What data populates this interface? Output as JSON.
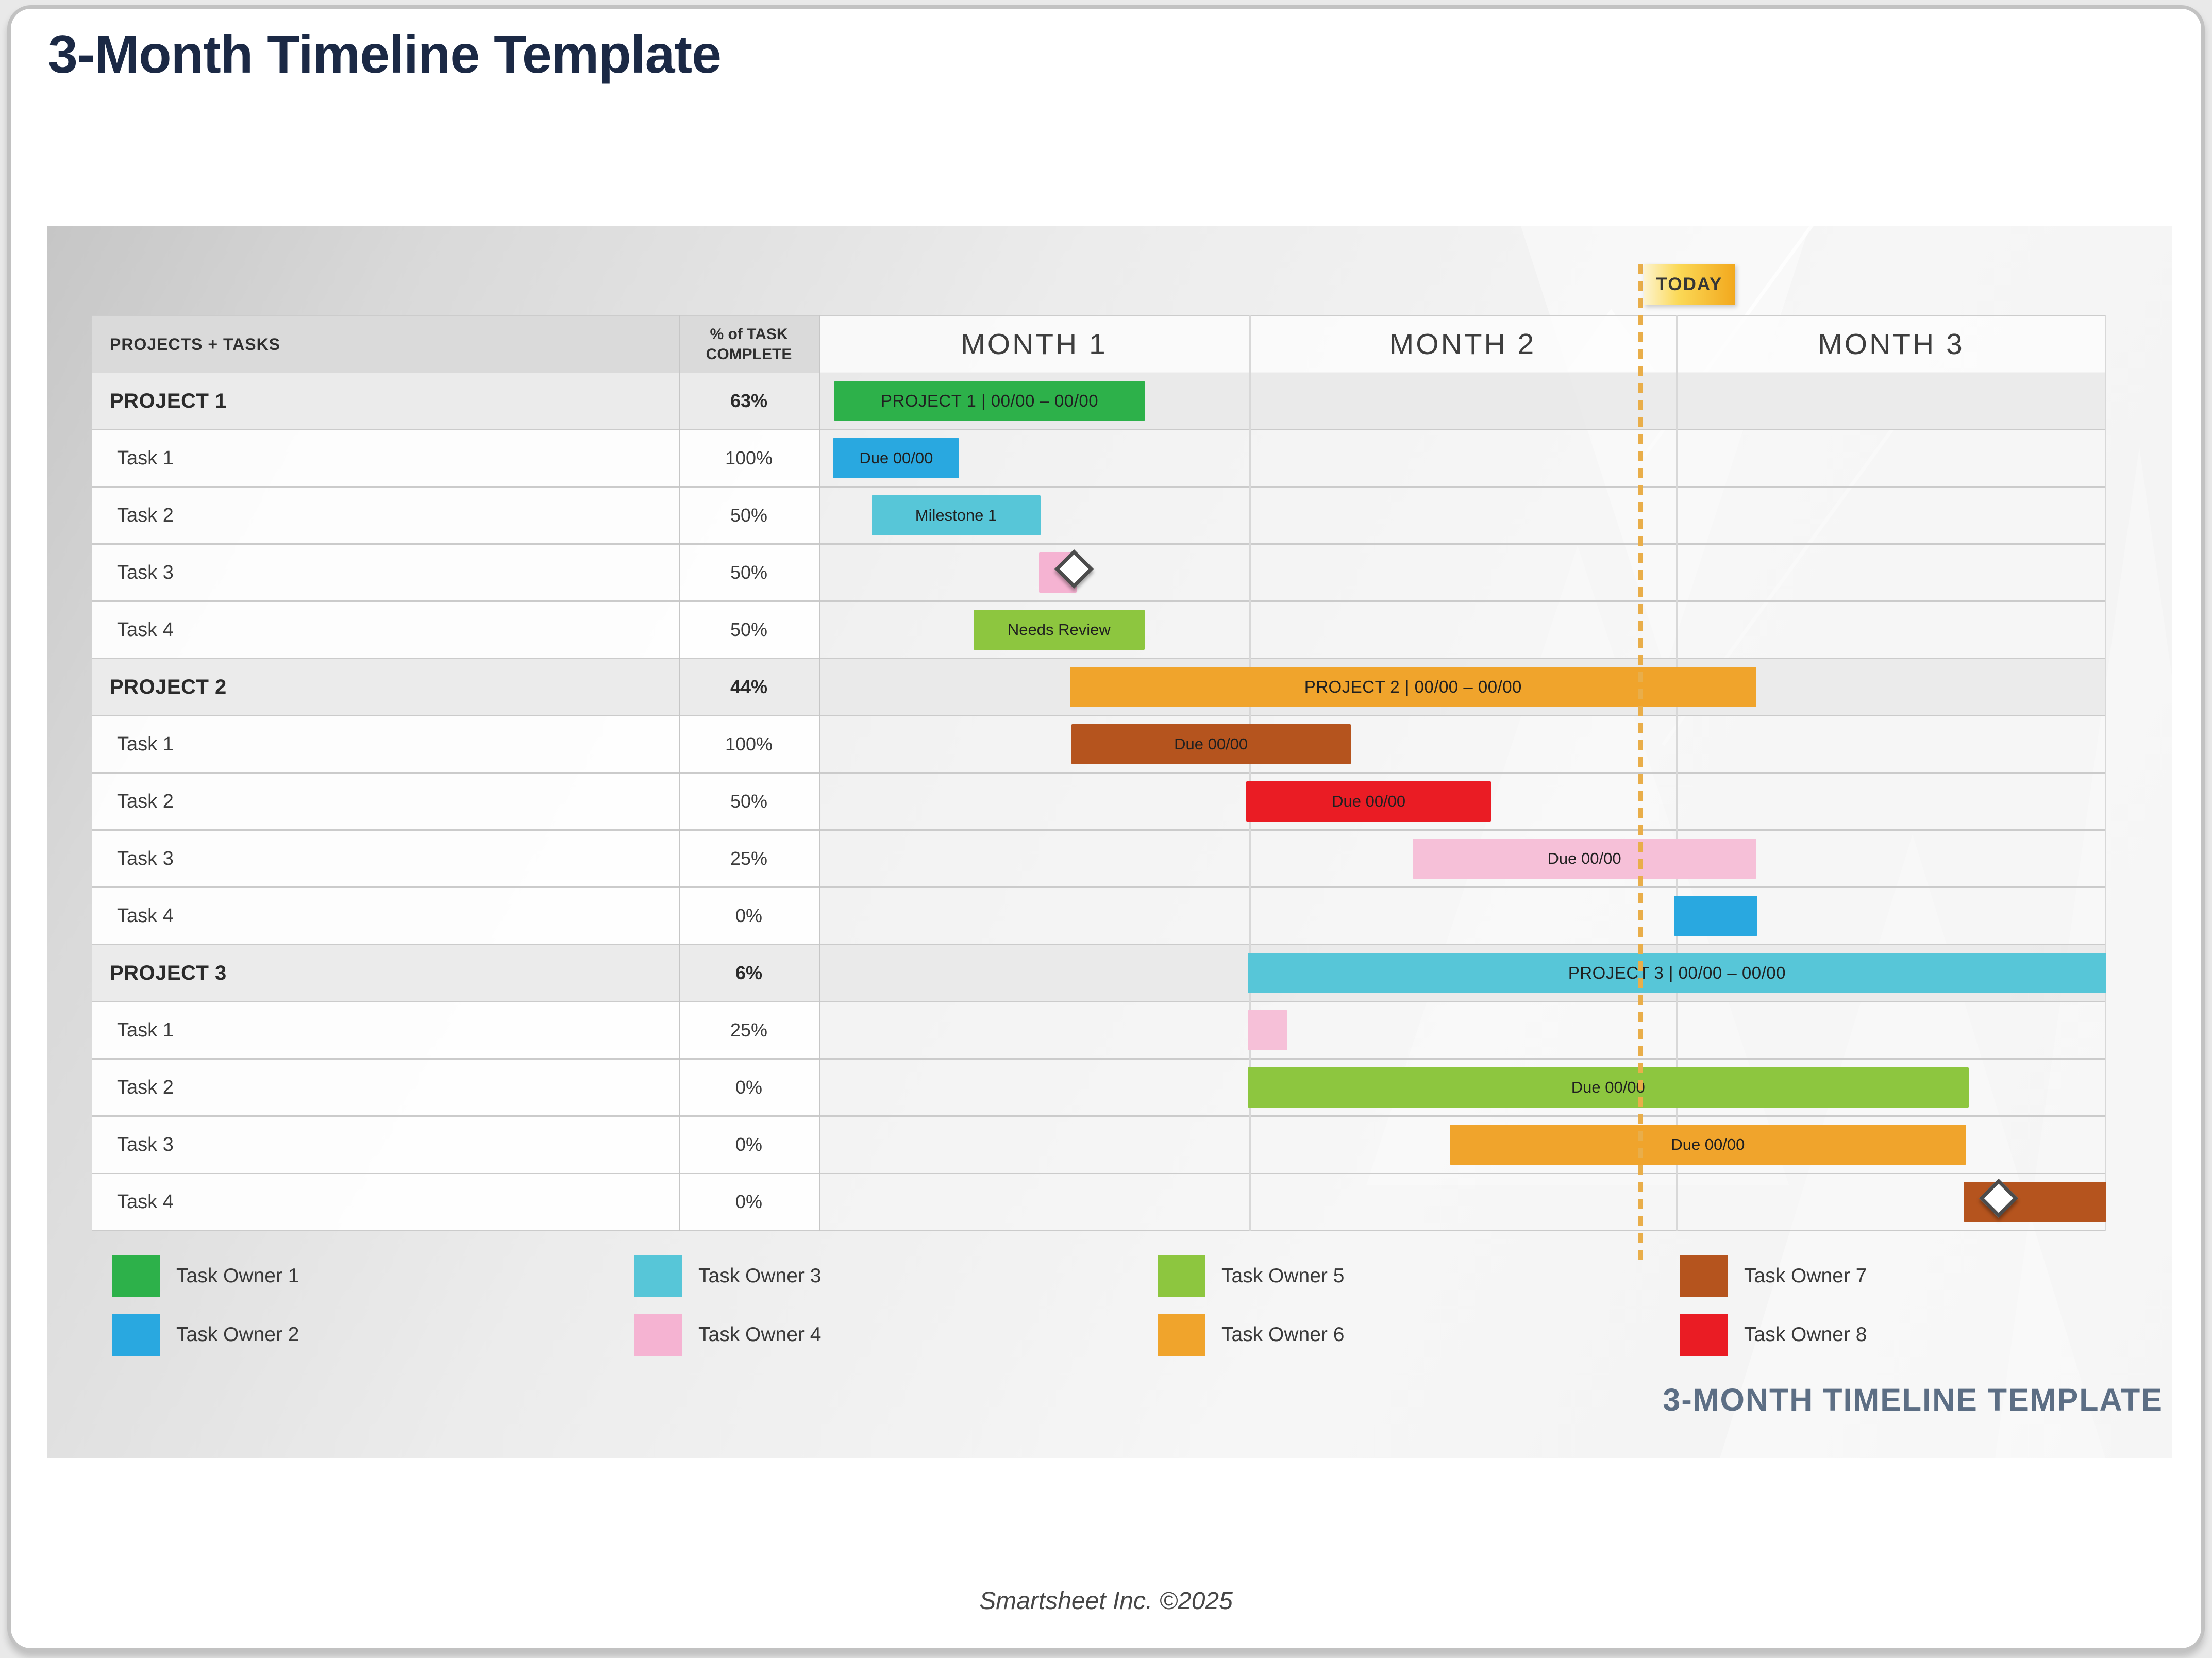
{
  "page": {
    "title": "3-Month Timeline Template",
    "watermark": "3-MONTH TIMELINE TEMPLATE",
    "footer": "Smartsheet Inc. ©2025"
  },
  "table": {
    "header_tasks": "PROJECTS + TASKS",
    "header_pct_top": "% of TASK",
    "header_pct_bottom": "COMPLETE",
    "months": [
      "MONTH 1",
      "MONTH 2",
      "MONTH 3"
    ],
    "today_label": "TODAY",
    "today_pct": 63.8,
    "rows": [
      {
        "name": "PROJECT 1",
        "pct": "63%",
        "project": true,
        "bar": {
          "start": 1.2,
          "end": 25.3,
          "color": "#2db14a",
          "label": "PROJECT 1  |  00/00 – 00/00"
        }
      },
      {
        "name": "Task 1",
        "pct": "100%",
        "project": false,
        "bar": {
          "start": 1.1,
          "end": 10.9,
          "color": "#29a8e0",
          "label": "Due 00/00"
        }
      },
      {
        "name": "Task 2",
        "pct": "50%",
        "project": false,
        "bar": {
          "start": 4.1,
          "end": 17.2,
          "color": "#57c6d8",
          "label": "Milestone 1"
        }
      },
      {
        "name": "Task 3",
        "pct": "50%",
        "project": false,
        "bar": {
          "start": 17.1,
          "end": 20.0,
          "color": "#f5b3d2",
          "label": ""
        },
        "milestone_pct": 20.1
      },
      {
        "name": "Task 4",
        "pct": "50%",
        "project": false,
        "bar": {
          "start": 12.0,
          "end": 25.3,
          "color": "#8dc63f",
          "label": "Needs Review"
        }
      },
      {
        "name": "PROJECT 2",
        "pct": "44%",
        "project": true,
        "bar": {
          "start": 19.5,
          "end": 72.8,
          "color": "#f0a42c",
          "label": "PROJECT 2  |  00/00 – 00/00"
        }
      },
      {
        "name": "Task 1",
        "pct": "100%",
        "project": false,
        "bar": {
          "start": 19.6,
          "end": 41.3,
          "color": "#b5541e",
          "label": "Due 00/00"
        }
      },
      {
        "name": "Task 2",
        "pct": "50%",
        "project": false,
        "bar": {
          "start": 33.2,
          "end": 52.2,
          "color": "#ea1c24",
          "label": "Due 00/00"
        }
      },
      {
        "name": "Task 3",
        "pct": "25%",
        "project": false,
        "bar": {
          "start": 46.1,
          "end": 72.8,
          "color": "#f6c0d8",
          "label": "Due 00/00"
        }
      },
      {
        "name": "Task 4",
        "pct": "0%",
        "project": false,
        "bar": {
          "start": 66.4,
          "end": 72.9,
          "color": "#29a8e0",
          "label": ""
        }
      },
      {
        "name": "PROJECT 3",
        "pct": "6%",
        "project": true,
        "bar": {
          "start": 33.3,
          "end": 100,
          "color": "#57c6d8",
          "label": "PROJECT 3  |  00/00 – 00/00"
        }
      },
      {
        "name": "Task 1",
        "pct": "25%",
        "project": false,
        "bar": {
          "start": 33.3,
          "end": 36.4,
          "color": "#f6c0d8",
          "label": ""
        }
      },
      {
        "name": "Task 2",
        "pct": "0%",
        "project": false,
        "bar": {
          "start": 33.3,
          "end": 89.3,
          "color": "#8dc63f",
          "label": "Due 00/00"
        }
      },
      {
        "name": "Task 3",
        "pct": "0%",
        "project": false,
        "bar": {
          "start": 49.0,
          "end": 89.1,
          "color": "#f0a42c",
          "label": "Due 00/00"
        }
      },
      {
        "name": "Task 4",
        "pct": "0%",
        "project": false,
        "bar": {
          "start": 88.9,
          "end": 100,
          "color": "#b5541e",
          "label": ""
        },
        "milestone_pct": 91.9
      }
    ]
  },
  "legend": {
    "items": [
      {
        "label": "Task Owner 1",
        "color": "#2db14a"
      },
      {
        "label": "Task Owner 2",
        "color": "#29a8e0"
      },
      {
        "label": "Task Owner 3",
        "color": "#57c6d8"
      },
      {
        "label": "Task Owner 4",
        "color": "#f5b3d2"
      },
      {
        "label": "Task Owner 5",
        "color": "#8dc63f"
      },
      {
        "label": "Task Owner 6",
        "color": "#f0a42c"
      },
      {
        "label": "Task Owner 7",
        "color": "#b5541e"
      },
      {
        "label": "Task Owner 8",
        "color": "#ea1c24"
      }
    ]
  },
  "colors": {
    "title": "#1b2945",
    "watermark": "#5c6e84",
    "today_badge_gradient": [
      "#fdf4d0",
      "#f2a81d"
    ],
    "today_dash": "#e9ae4a",
    "header_bg": "#dadada",
    "project_row_bg": "#ebebeb"
  },
  "chart_data": {
    "type": "bar",
    "subtype": "gantt",
    "title": "3-Month Timeline Template",
    "xlabel": "",
    "ylabel": "",
    "x_axis_categories": [
      "MONTH 1",
      "MONTH 2",
      "MONTH 3"
    ],
    "x_range_pct": [
      0,
      100
    ],
    "today_marker_pct": 63.8,
    "legend_position": "bottom",
    "grid": true,
    "rows": [
      {
        "task": "PROJECT 1",
        "pct_complete": "63%",
        "start_pct": 1.2,
        "end_pct": 25.3,
        "color": "#2db14a",
        "bar_label": "PROJECT 1  |  00/00 – 00/00"
      },
      {
        "task": "Task 1",
        "pct_complete": "100%",
        "start_pct": 1.1,
        "end_pct": 10.9,
        "color": "#29a8e0",
        "bar_label": "Due 00/00"
      },
      {
        "task": "Task 2",
        "pct_complete": "50%",
        "start_pct": 4.1,
        "end_pct": 17.2,
        "color": "#57c6d8",
        "bar_label": "Milestone 1"
      },
      {
        "task": "Task 3",
        "pct_complete": "50%",
        "start_pct": 17.1,
        "end_pct": 20.0,
        "color": "#f5b3d2",
        "bar_label": "",
        "milestone_pct": 20.1
      },
      {
        "task": "Task 4",
        "pct_complete": "50%",
        "start_pct": 12.0,
        "end_pct": 25.3,
        "color": "#8dc63f",
        "bar_label": "Needs Review"
      },
      {
        "task": "PROJECT 2",
        "pct_complete": "44%",
        "start_pct": 19.5,
        "end_pct": 72.8,
        "color": "#f0a42c",
        "bar_label": "PROJECT 2  |  00/00 – 00/00"
      },
      {
        "task": "Task 1",
        "pct_complete": "100%",
        "start_pct": 19.6,
        "end_pct": 41.3,
        "color": "#b5541e",
        "bar_label": "Due 00/00"
      },
      {
        "task": "Task 2",
        "pct_complete": "50%",
        "start_pct": 33.2,
        "end_pct": 52.2,
        "color": "#ea1c24",
        "bar_label": "Due 00/00"
      },
      {
        "task": "Task 3",
        "pct_complete": "25%",
        "start_pct": 46.1,
        "end_pct": 72.8,
        "color": "#f6c0d8",
        "bar_label": "Due 00/00"
      },
      {
        "task": "Task 4",
        "pct_complete": "0%",
        "start_pct": 66.4,
        "end_pct": 72.9,
        "color": "#29a8e0",
        "bar_label": ""
      },
      {
        "task": "PROJECT 3",
        "pct_complete": "6%",
        "start_pct": 33.3,
        "end_pct": 100,
        "color": "#57c6d8",
        "bar_label": "PROJECT 3  |  00/00 – 00/00"
      },
      {
        "task": "Task 1",
        "pct_complete": "25%",
        "start_pct": 33.3,
        "end_pct": 36.4,
        "color": "#f6c0d8",
        "bar_label": ""
      },
      {
        "task": "Task 2",
        "pct_complete": "0%",
        "start_pct": 33.3,
        "end_pct": 89.3,
        "color": "#8dc63f",
        "bar_label": "Due 00/00"
      },
      {
        "task": "Task 3",
        "pct_complete": "0%",
        "start_pct": 49.0,
        "end_pct": 89.1,
        "color": "#f0a42c",
        "bar_label": "Due 00/00"
      },
      {
        "task": "Task 4",
        "pct_complete": "0%",
        "start_pct": 88.9,
        "end_pct": 100,
        "color": "#b5541e",
        "bar_label": "",
        "milestone_pct": 91.9
      }
    ]
  }
}
